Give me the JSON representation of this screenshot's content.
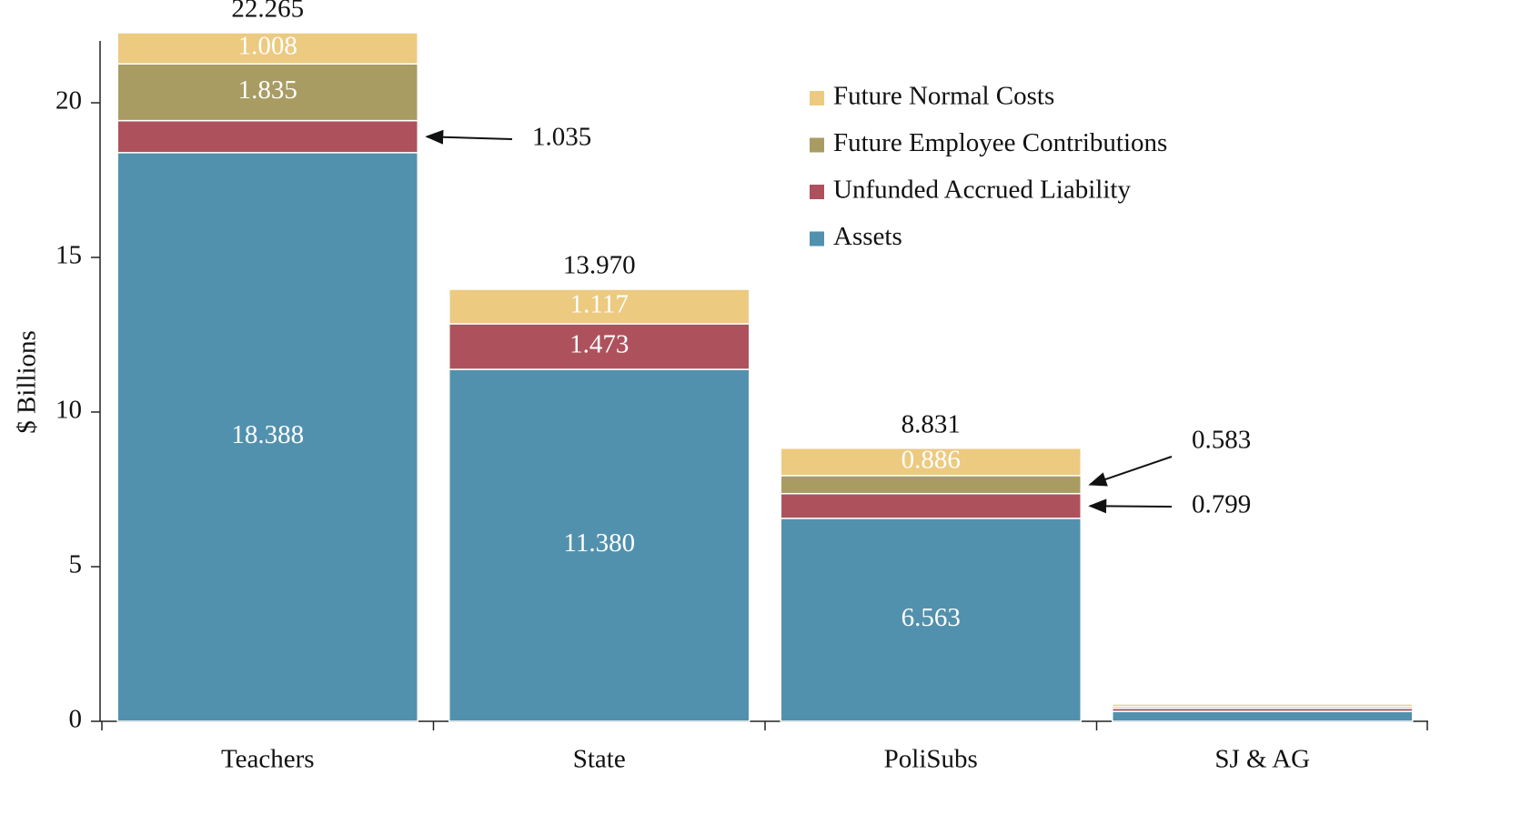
{
  "chart_data": {
    "type": "stacked_bar",
    "y_label": "$ Billions",
    "categories": [
      "Teachers",
      "State",
      "PoliSubs",
      "SJ & AG"
    ],
    "series": [
      {
        "name": "Assets",
        "color": "#5291ad",
        "values": [
          18.388,
          11.38,
          6.563,
          0.32
        ],
        "value_labels": [
          "18.388",
          "11.380",
          "6.563",
          null
        ]
      },
      {
        "name": "Unfunded Accrued Liability",
        "color": "#ad525c",
        "values": [
          1.035,
          1.473,
          0.799,
          0.1
        ],
        "value_labels": [
          "1.035",
          "1.473",
          "0.799",
          null
        ]
      },
      {
        "name": "Future Employee Contributions",
        "color": "#a89c63",
        "values": [
          1.835,
          0,
          0.583,
          0.06
        ],
        "value_labels": [
          "1.835",
          null,
          "0.583",
          null
        ]
      },
      {
        "name": "Future Normal Costs",
        "color": "#ecca80",
        "values": [
          1.008,
          1.117,
          0.886,
          0.08
        ],
        "value_labels": [
          "1.008",
          "1.117",
          "0.886",
          null
        ]
      }
    ],
    "totals": [
      22.265,
      13.97,
      8.831,
      null
    ],
    "total_labels": [
      "22.265",
      "13.970",
      "8.831",
      null
    ],
    "ylim": [
      0,
      22
    ],
    "yticks": [
      0,
      5,
      10,
      15,
      20
    ],
    "grid": false
  }
}
